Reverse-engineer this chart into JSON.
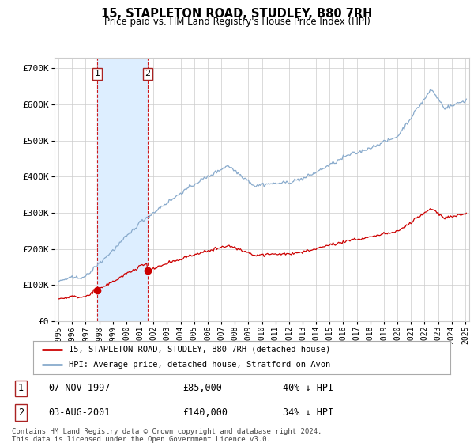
{
  "title": "15, STAPLETON ROAD, STUDLEY, B80 7RH",
  "subtitle": "Price paid vs. HM Land Registry's House Price Index (HPI)",
  "legend_line1": "15, STAPLETON ROAD, STUDLEY, B80 7RH (detached house)",
  "legend_line2": "HPI: Average price, detached house, Stratford-on-Avon",
  "footnote": "Contains HM Land Registry data © Crown copyright and database right 2024.\nThis data is licensed under the Open Government Licence v3.0.",
  "purchases": [
    {
      "date_num": 1997.85,
      "price": 85000,
      "label": "1",
      "date_str": "07-NOV-1997"
    },
    {
      "date_num": 2001.58,
      "price": 140000,
      "label": "2",
      "date_str": "03-AUG-2001"
    }
  ],
  "purchase_annotations": [
    {
      "label": "1",
      "date_str": "07-NOV-1997",
      "price": "£85,000",
      "pct": "40% ↓ HPI"
    },
    {
      "label": "2",
      "date_str": "03-AUG-2001",
      "price": "£140,000",
      "pct": "34% ↓ HPI"
    }
  ],
  "price_color": "#cc0000",
  "hpi_color": "#88aacc",
  "vline_color": "#cc0000",
  "span_color": "#ddeeff",
  "background_color": "#ffffff",
  "plot_bg_color": "#ffffff",
  "grid_color": "#cccccc",
  "ylim": [
    0,
    730000
  ],
  "yticks": [
    0,
    100000,
    200000,
    300000,
    400000,
    500000,
    600000,
    700000
  ],
  "ytick_labels": [
    "£0",
    "£100K",
    "£200K",
    "£300K",
    "£400K",
    "£500K",
    "£600K",
    "£700K"
  ],
  "xmin": 1994.7,
  "xmax": 2025.3
}
